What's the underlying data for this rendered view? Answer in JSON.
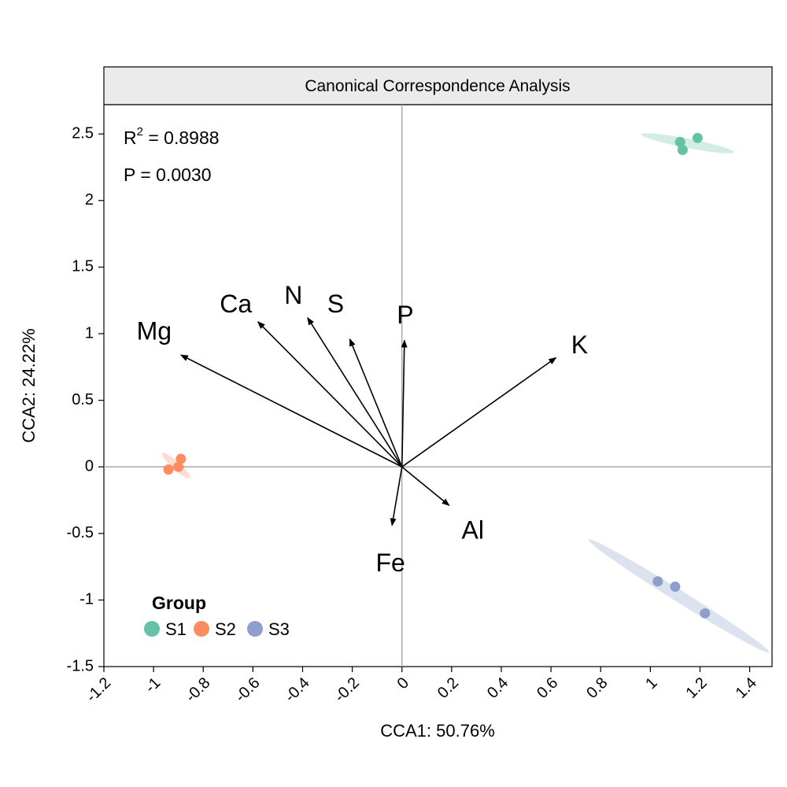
{
  "chart_data": {
    "type": "scatter",
    "title": "Canonical Correspondence Analysis",
    "xlabel": "CCA1: 50.76%",
    "ylabel": "CCA2: 24.22%",
    "xlim": [
      -1.2,
      1.49
    ],
    "ylim": [
      -1.5,
      2.72
    ],
    "x_ticks": [
      -1.2,
      -1,
      -0.8,
      -0.6,
      -0.4,
      -0.2,
      0,
      0.2,
      0.4,
      0.6,
      0.8,
      1,
      1.2,
      1.4
    ],
    "x_tick_labels": [
      "-1.2",
      "-1",
      "-0.8",
      "-0.6",
      "-0.4",
      "-0.2",
      "0",
      "0.2",
      "0.4",
      "0.6",
      "0.8",
      "1",
      "1.2",
      "1.4"
    ],
    "y_ticks": [
      2.5,
      2,
      1.5,
      1,
      0.5,
      0,
      -0.5,
      -1,
      -1.5
    ],
    "y_tick_labels": [
      "2.5",
      "2",
      "1.5",
      "1",
      "0.5",
      "0",
      "-0.5",
      "-1",
      "-1.5"
    ],
    "reference_lines": {
      "x": 0,
      "y": 0,
      "color": "#a0a0a0"
    },
    "annotations": {
      "r2_prefix": "R",
      "r2_sup": "2",
      "r2_value": " = 0.8988",
      "p_text": "P = 0.0030"
    },
    "legend": {
      "title": "Group",
      "placement": "bottom-left",
      "items": [
        {
          "label": "S1",
          "color": "#66c2a5"
        },
        {
          "label": "S2",
          "color": "#fc8d62"
        },
        {
          "label": "S3",
          "color": "#8da0cb"
        }
      ]
    },
    "series": [
      {
        "group": "S1",
        "color": "#66c2a5",
        "points": [
          [
            1.12,
            2.44
          ],
          [
            1.19,
            2.47
          ],
          [
            1.13,
            2.38
          ]
        ],
        "ellipse": {
          "cx": 1.15,
          "cy": 2.43,
          "rx": 0.19,
          "ry": 0.035,
          "angle_deg": 11
        }
      },
      {
        "group": "S2",
        "color": "#fc8d62",
        "points": [
          [
            -0.89,
            0.06
          ],
          [
            -0.94,
            -0.02
          ],
          [
            -0.9,
            0.0
          ]
        ],
        "ellipse": {
          "cx": -0.91,
          "cy": 0.01,
          "rx": 0.075,
          "ry": 0.03,
          "angle_deg": 42
        }
      },
      {
        "group": "S3",
        "color": "#8da0cb",
        "points": [
          [
            1.03,
            -0.86
          ],
          [
            1.1,
            -0.9
          ],
          [
            1.22,
            -1.1
          ]
        ],
        "ellipse": {
          "cx": 1.115,
          "cy": -0.97,
          "rx": 0.43,
          "ry": 0.045,
          "angle_deg": 32
        }
      }
    ],
    "arrows": [
      {
        "label": "Mg",
        "x": -0.89,
        "y": 0.84
      },
      {
        "label": "Ca",
        "x": -0.58,
        "y": 1.09
      },
      {
        "label": "N",
        "x": -0.38,
        "y": 1.12
      },
      {
        "label": "S",
        "x": -0.21,
        "y": 0.96
      },
      {
        "label": "P",
        "x": 0.01,
        "y": 0.95
      },
      {
        "label": "K",
        "x": 0.62,
        "y": 0.82
      },
      {
        "label": "Al",
        "x": 0.19,
        "y": -0.29
      },
      {
        "label": "Fe",
        "x": -0.04,
        "y": -0.44
      }
    ]
  }
}
